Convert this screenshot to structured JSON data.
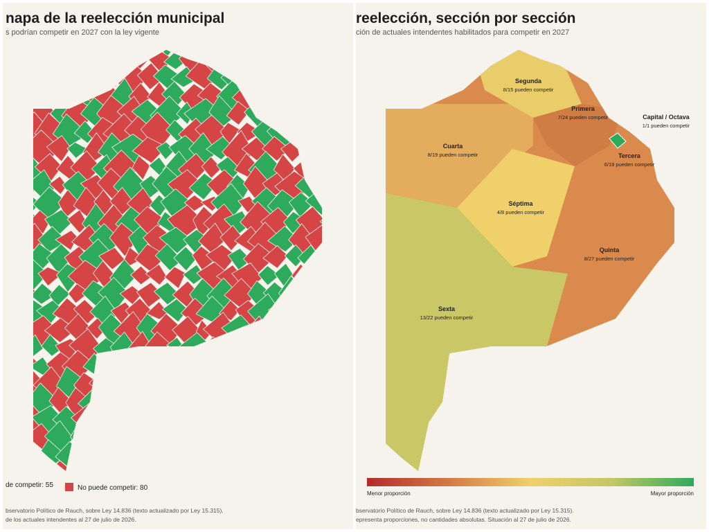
{
  "left_panel": {
    "title": "napa de la reelección municipal",
    "subtitle": "s podrían competir en 2027 con la ley vigente",
    "legend": [
      {
        "label": "de competir: 55",
        "color": "#2eaa5c"
      },
      {
        "label": "No puede competir: 80",
        "color": "#d64545"
      }
    ],
    "source": [
      "bservatorio Político de Rauch, sobre Ley 14.836 (texto actualizado por Ley 15.315).",
      "de los actuales intendentes al 27 de julio de 2026."
    ]
  },
  "right_panel": {
    "title": "reelección, sección por sección",
    "subtitle": "ción de actuales intendentes habilitados para competir en 2027",
    "sections": [
      {
        "name": "Segunda",
        "label": "8/15 pueden competir"
      },
      {
        "name": "Primera",
        "label": "7/24 pueden competir"
      },
      {
        "name": "Capital / Octava",
        "label": "1/1 pueden competir"
      },
      {
        "name": "Cuarta",
        "label": "8/19 pueden competir"
      },
      {
        "name": "Tercera",
        "label": "6/19 pueden competir"
      },
      {
        "name": "Séptima",
        "label": "4/8 pueden competir"
      },
      {
        "name": "Quinta",
        "label": "8/27 pueden competir"
      },
      {
        "name": "Sexta",
        "label": "13/22 pueden competir"
      }
    ],
    "scale": {
      "min_label": "Menor proporción",
      "max_label": "Mayor proporción"
    },
    "source": [
      "bservatorio Político de Rauch, sobre Ley 14.836 (texto actualizado por Ley 15.315).",
      "epresenta proporciones, no cantidades absolutas. Situación al 27 de julio de 2026."
    ]
  }
}
